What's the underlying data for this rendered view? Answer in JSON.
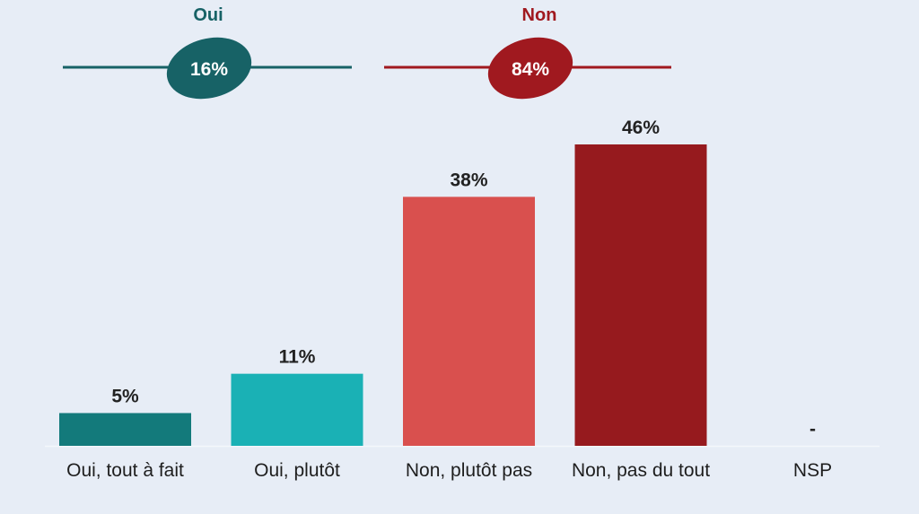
{
  "chart_data": {
    "type": "bar",
    "categories": [
      "Oui, tout à fait",
      "Oui, plutôt",
      "Non, plutôt pas",
      "Non, pas du tout",
      "NSP"
    ],
    "values": [
      5,
      11,
      38,
      46,
      null
    ],
    "value_labels": [
      "5%",
      "11%",
      "38%",
      "46%",
      "-"
    ],
    "colors": [
      "#137a7b",
      "#1ab1b5",
      "#d9504e",
      "#961a1e",
      "#e7edf6"
    ],
    "ylim": [
      0,
      46
    ],
    "groups": [
      {
        "name": "Oui",
        "total_label": "16%",
        "color": "#176266",
        "categories": [
          "Oui, tout à fait",
          "Oui, plutôt"
        ]
      },
      {
        "name": "Non",
        "total_label": "84%",
        "color": "#a0191f",
        "categories": [
          "Non, plutôt pas",
          "Non, pas du tout"
        ]
      }
    ]
  }
}
